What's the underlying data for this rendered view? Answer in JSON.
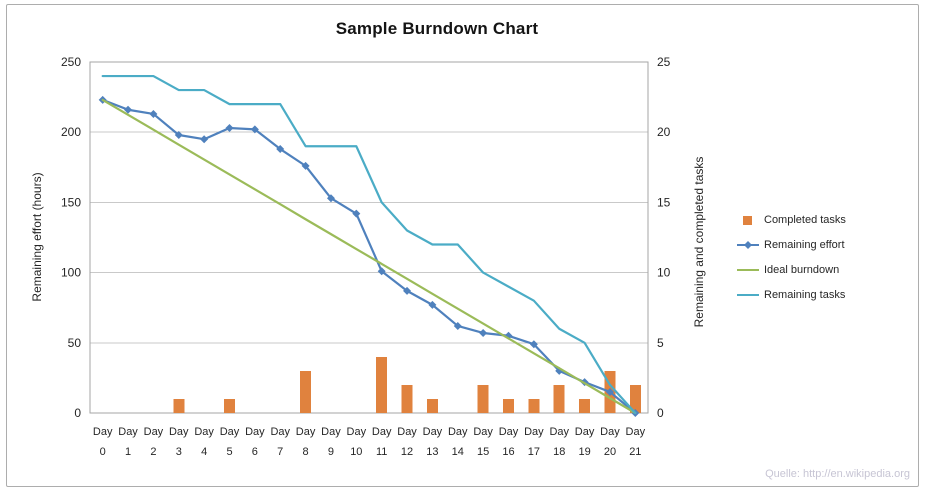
{
  "title": "Sample Burndown Chart",
  "source_note": "Quelle: http://en.wikipedia.org",
  "chart_data": {
    "type": "combo",
    "title": "Sample Burndown Chart",
    "categories": [
      "Day 0",
      "Day 1",
      "Day 2",
      "Day 3",
      "Day 4",
      "Day 5",
      "Day 6",
      "Day 7",
      "Day 8",
      "Day 9",
      "Day 10",
      "Day 11",
      "Day 12",
      "Day 13",
      "Day 14",
      "Day 15",
      "Day 16",
      "Day 17",
      "Day 18",
      "Day 19",
      "Day 20",
      "Day 21"
    ],
    "left_axis": {
      "label": "Remaining effort (hours)",
      "min": 0,
      "max": 250,
      "step": 50
    },
    "right_axis": {
      "label": "Remaining and completed tasks",
      "min": 0,
      "max": 25,
      "step": 5
    },
    "grid": true,
    "legend_position": "right",
    "series": [
      {
        "name": "Completed tasks",
        "type": "bar",
        "axis": "right",
        "color": "#E0823E",
        "values": [
          0,
          0,
          0,
          1,
          0,
          1,
          0,
          0,
          3,
          0,
          0,
          4,
          2,
          1,
          0,
          2,
          1,
          1,
          2,
          1,
          3,
          2
        ]
      },
      {
        "name": "Remaining effort",
        "type": "line",
        "marker": "diamond",
        "axis": "left",
        "color": "#4F81BD",
        "values": [
          223,
          216,
          213,
          198,
          195,
          203,
          202,
          188,
          176,
          153,
          142,
          101,
          87,
          77,
          62,
          57,
          55,
          49,
          30,
          22,
          15,
          0
        ]
      },
      {
        "name": "Ideal burndown",
        "type": "line",
        "axis": "left",
        "color": "#9BBB59",
        "values": [
          223,
          212.4,
          201.8,
          191.1,
          180.5,
          169.9,
          159.3,
          148.7,
          138,
          127.4,
          116.8,
          106.2,
          95.6,
          84.9,
          74.3,
          63.7,
          53.1,
          42.5,
          31.9,
          21.2,
          10.6,
          0
        ]
      },
      {
        "name": "Remaining tasks",
        "type": "line",
        "axis": "right",
        "color": "#4BACC6",
        "values": [
          24,
          24,
          24,
          23,
          23,
          22,
          22,
          22,
          19,
          19,
          19,
          15,
          13,
          12,
          12,
          10,
          9,
          8,
          6,
          5,
          2,
          0
        ]
      }
    ]
  }
}
